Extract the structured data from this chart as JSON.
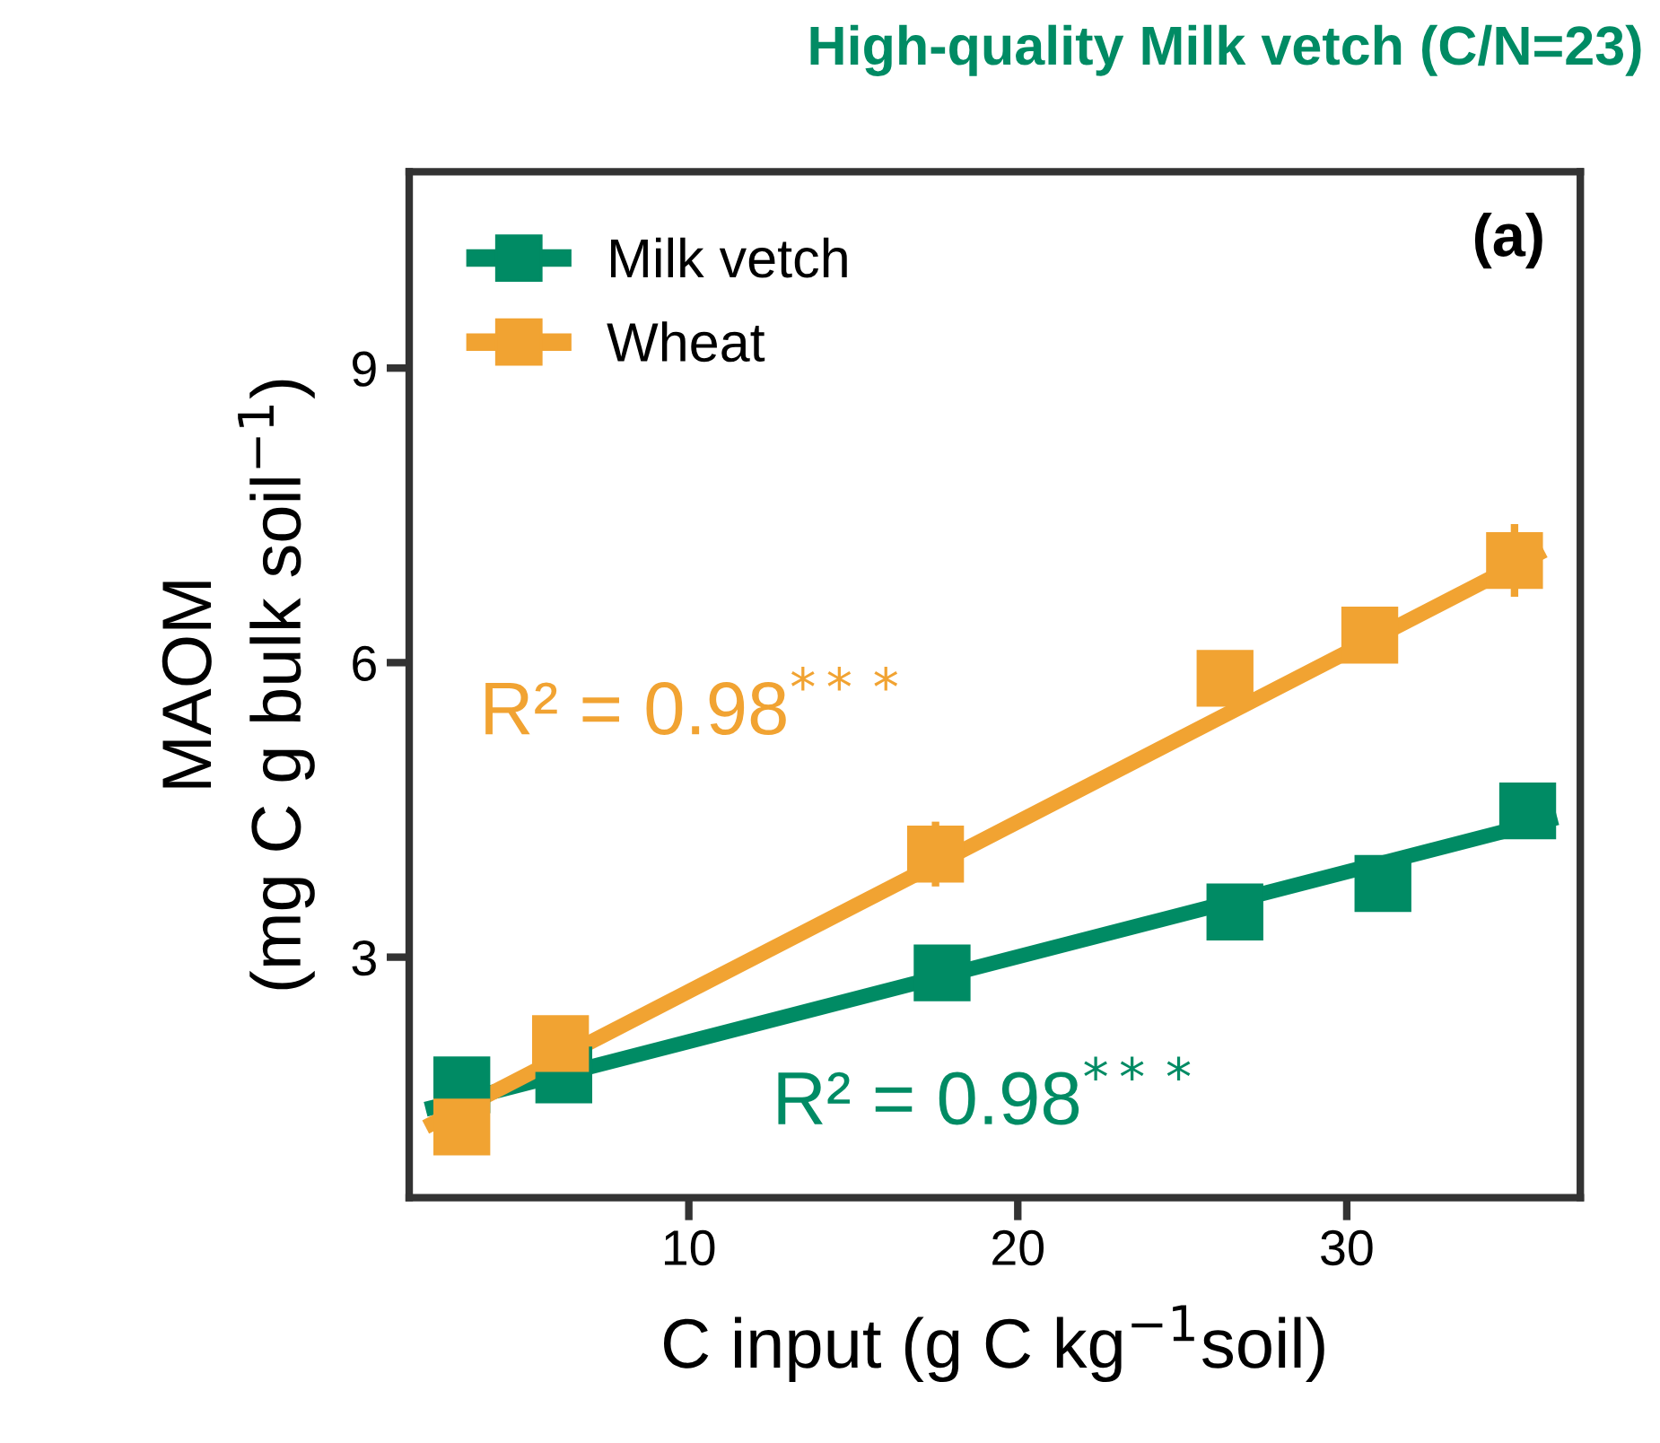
{
  "chart_data": {
    "type": "scatter",
    "title": "High-quality Milk vetch (C/N=23)",
    "xlabel": "C input (g C kg$^{−1}$soil)",
    "ylabel": "MAOM\n(mg C g bulk soil$^{−1}$)",
    "xlim": [
      1.5,
      37.1
    ],
    "xticks": [
      10,
      20,
      30
    ],
    "ylim": [
      0.55,
      11.0
    ],
    "yticks": [
      3,
      6,
      9
    ],
    "grid": false,
    "legend": "top left",
    "marker": "square",
    "series": [
      {
        "name": "Milk vetch",
        "color": "#008b64",
        "x": [
          3.1,
          6.2,
          17.7,
          26.6,
          31.1,
          35.5
        ],
        "values": [
          1.7,
          1.8,
          2.84,
          3.46,
          3.75,
          4.49
        ],
        "errors": [
          null,
          null,
          null,
          null,
          null,
          null
        ]
      },
      {
        "name": "Wheat",
        "color": "#f1a332",
        "x": [
          3.1,
          6.1,
          17.5,
          26.3,
          30.7,
          35.1
        ],
        "values": [
          1.27,
          2.12,
          4.05,
          5.84,
          6.28,
          7.04
        ],
        "errors": [
          null,
          null,
          0.33,
          null,
          null,
          0.37
        ]
      },
      {
        "type": "line",
        "marker": "none",
        "color": "#008b64",
        "x": [
          2.0,
          36.4
        ],
        "values": [
          1.45,
          4.42
        ]
      },
      {
        "type": "line",
        "marker": "none",
        "color": "#f1a332",
        "x": [
          2.0,
          36.0
        ],
        "values": [
          1.27,
          7.14
        ]
      }
    ],
    "annotations": [
      "(a)",
      "R² = 0.98$^{***}$",
      "R² = 0.98$^{***}$"
    ]
  }
}
